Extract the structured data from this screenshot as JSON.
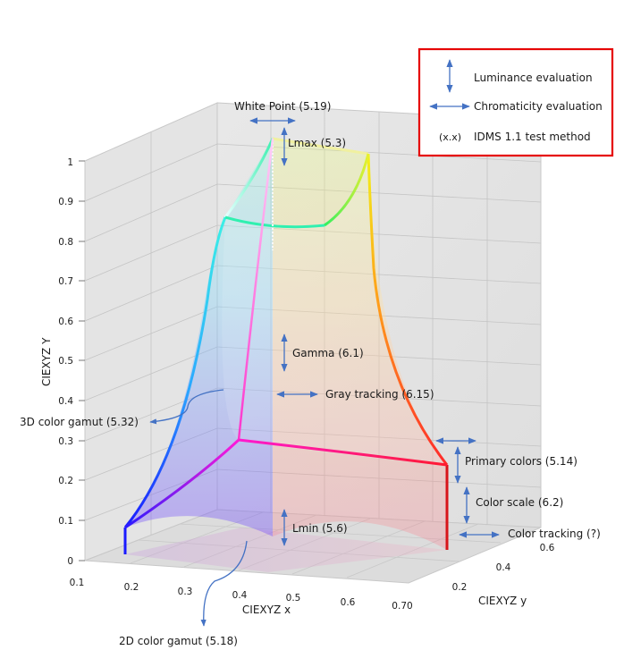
{
  "axes": {
    "x_label": "CIEXYZ x",
    "y_label": "CIEXYZ y",
    "z_label": "CIEXYZ Y",
    "x_ticks": [
      "0.1",
      "0.2",
      "0.3",
      "0.4",
      "0.5",
      "0.6",
      "0.70"
    ],
    "y_ticks": [
      "0.2",
      "0.4",
      "0.6"
    ],
    "z_ticks": [
      "0",
      "0.1",
      "0.2",
      "0.3",
      "0.4",
      "0.5",
      "0.6",
      "0.7",
      "0.8",
      "0.9",
      "1"
    ]
  },
  "annotations": {
    "white_point": "White Point (5.19)",
    "lmax": "Lmax (5.3)",
    "gamma": "Gamma (6.1)",
    "gray_tracking": "Gray tracking (6.15)",
    "color_gamut_3d": "3D color gamut (5.32)",
    "primary_colors": "Primary colors (5.14)",
    "color_scale": "Color scale (6.2)",
    "color_tracking": "Color tracking (?)",
    "lmin": "Lmin (5.6)",
    "color_gamut_2d": "2D color gamut (5.18)"
  },
  "legend": {
    "border_color": "#e60000",
    "arrow_color": "#4472c4",
    "items": [
      {
        "symbol": "vertical-arrow",
        "label": "Luminance evaluation"
      },
      {
        "symbol": "horizontal-arrow",
        "label": "Chromaticity evaluation"
      },
      {
        "symbol": "(x.x)",
        "label": "IDMS 1.1 test method"
      }
    ]
  }
}
